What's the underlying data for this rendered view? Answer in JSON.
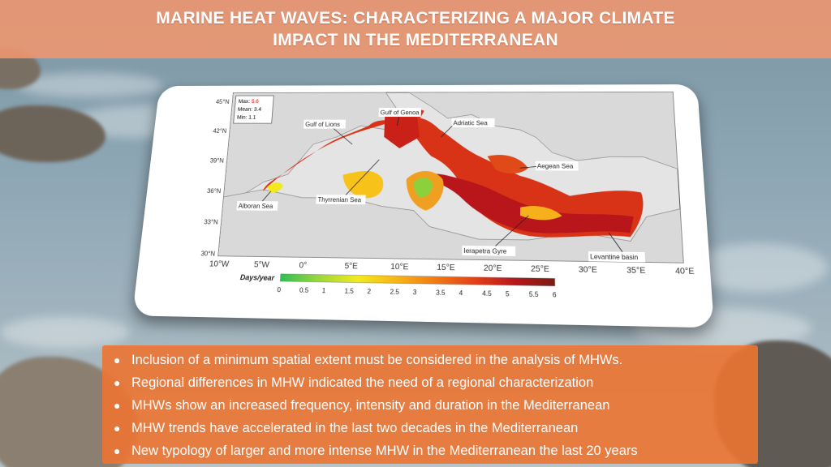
{
  "title": {
    "line1": "MARINE HEAT WAVES: CHARACTERIZING A MAJOR CLIMATE",
    "line2": "IMPACT IN THE MEDITERRANEAN"
  },
  "map": {
    "stats": {
      "max_label": "Max:",
      "max_value": "5.6",
      "mean_label": "Mean:",
      "mean_value": "3.4",
      "min_label": "Min:",
      "min_value": "1.1"
    },
    "lat_labels": [
      "45°N",
      "42°N",
      "39°N",
      "36°N",
      "33°N",
      "30°N"
    ],
    "lon_labels": [
      "10°W",
      "5°W",
      "0°",
      "5°E",
      "10°E",
      "15°E",
      "20°E",
      "25°E",
      "30°E",
      "35°E",
      "40°E"
    ],
    "regions": [
      "Gulf of Lions",
      "Gulf of Genoa",
      "Adriatic Sea",
      "Aegean Sea",
      "Alboran Sea",
      "Thyrrenian Sea",
      "Ierapetra Gyre",
      "Levantine basin"
    ],
    "colorbar": {
      "label": "Days/year",
      "ticks": [
        "0",
        "0.5",
        "1",
        "1.5",
        "2",
        "2.5",
        "3",
        "3.5",
        "4",
        "4.5",
        "5",
        "5.5",
        "6"
      ],
      "colors": [
        "#2fbf55",
        "#9bd83a",
        "#f2ea1e",
        "#f7b518",
        "#f27a12",
        "#e2401a",
        "#b8161a",
        "#7a1d12"
      ]
    }
  },
  "bullets": [
    "Inclusion of a minimum spatial extent must be considered in the analysis of MHWs.",
    "Regional differences in MHW indicated the need of a regional characterization",
    "MHWs show an increased frequency, intensity and duration in the Mediterranean",
    "MHW trends have accelerated in the last two decades in the Mediterranean",
    "New typology of larger and more intense MHW in the Mediterranean the last 20 years"
  ],
  "bullet_glyph": "●"
}
